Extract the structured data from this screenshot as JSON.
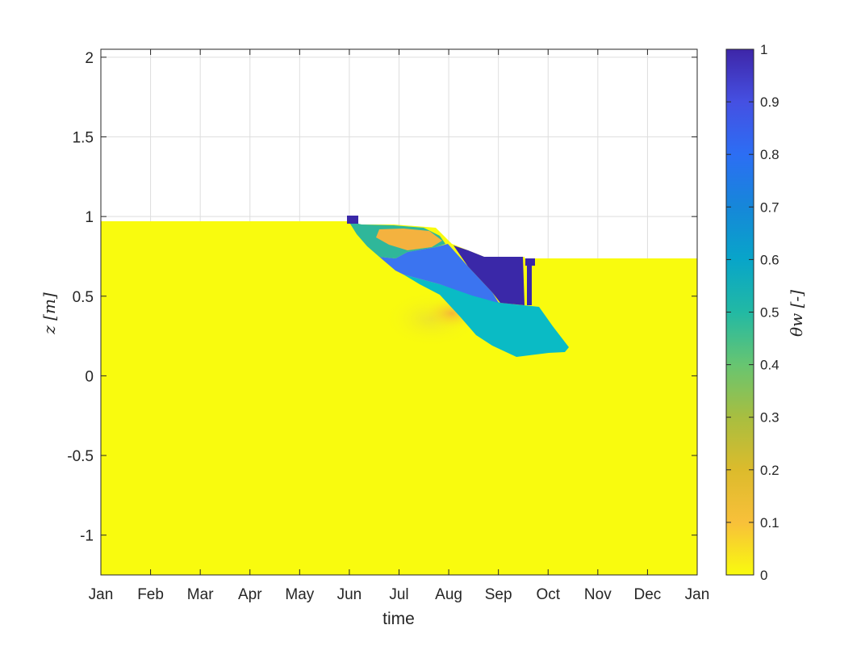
{
  "chart_data": {
    "type": "heatmap",
    "title": "",
    "xlabel": "time",
    "ylabel": "z [m]",
    "xlim": [
      "Jan",
      "Jan"
    ],
    "x_ticks": [
      "Jan",
      "Feb",
      "Mar",
      "Apr",
      "May",
      "Jun",
      "Jul",
      "Aug",
      "Sep",
      "Oct",
      "Nov",
      "Dec",
      "Jan"
    ],
    "ylim": [
      -1.25,
      2.05
    ],
    "y_ticks": [
      -1,
      -0.5,
      0,
      0.5,
      1,
      1.5,
      2
    ],
    "y_tick_labels": [
      "-1",
      "-0.5",
      "0",
      "0.5",
      "1",
      "1.5",
      "2"
    ],
    "grid": true,
    "colormap": "parula",
    "colorbar": {
      "label": "θw [-]",
      "limits": [
        0,
        1
      ],
      "ticks": [
        0,
        0.1,
        0.2,
        0.3,
        0.4,
        0.5,
        0.6,
        0.7,
        0.8,
        0.9,
        1
      ],
      "tick_labels": [
        "0",
        "0.1",
        "0.2",
        "0.3",
        "0.4",
        "0.5",
        "0.6",
        "0.7",
        "0.8",
        "0.9",
        "1"
      ],
      "colors": [
        "#f9fb0e",
        "#f8c03a",
        "#dcbb2c",
        "#a8be40",
        "#67c571",
        "#22b9a4",
        "#08a5c9",
        "#1687d9",
        "#2c6ef4",
        "#4550e2",
        "#3e26a8"
      ]
    },
    "surface_top": {
      "description": "top of domain (z of uppermost cell), piecewise over time",
      "x": [
        "Jan",
        "Jun",
        "Sep 22",
        "Jan"
      ],
      "z_before": 0.98,
      "z_after": 0.75
    },
    "regions": [
      {
        "name": "background",
        "theta_w": 0.0
      },
      {
        "name": "upper wet layer",
        "theta_w": 0.45
      },
      {
        "name": "dry patch",
        "theta_w": 0.15
      },
      {
        "name": "middle wet layer",
        "theta_w": 0.82
      },
      {
        "name": "saturated layer",
        "theta_w": 0.98
      },
      {
        "name": "lower wet layer",
        "theta_w": 0.57
      },
      {
        "name": "wetting front halo",
        "theta_w": 0.15
      }
    ]
  }
}
